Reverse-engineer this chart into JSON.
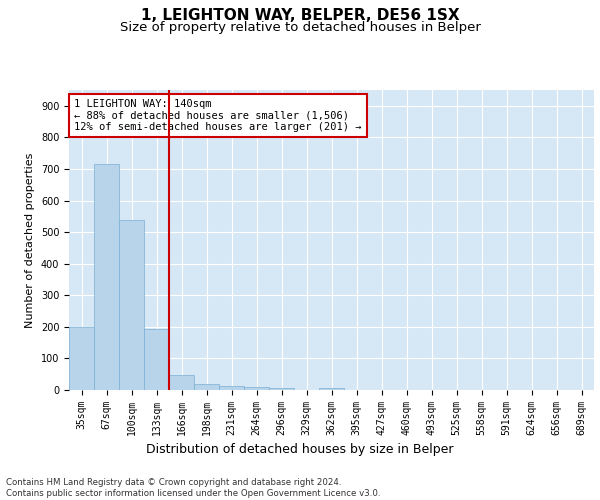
{
  "title_line1": "1, LEIGHTON WAY, BELPER, DE56 1SX",
  "title_line2": "Size of property relative to detached houses in Belper",
  "xlabel": "Distribution of detached houses by size in Belper",
  "ylabel": "Number of detached properties",
  "bins": [
    "35sqm",
    "67sqm",
    "100sqm",
    "133sqm",
    "166sqm",
    "198sqm",
    "231sqm",
    "264sqm",
    "296sqm",
    "329sqm",
    "362sqm",
    "395sqm",
    "427sqm",
    "460sqm",
    "493sqm",
    "525sqm",
    "558sqm",
    "591sqm",
    "624sqm",
    "656sqm",
    "689sqm"
  ],
  "values": [
    200,
    715,
    537,
    192,
    46,
    18,
    14,
    10,
    7,
    0,
    5,
    0,
    0,
    0,
    0,
    0,
    0,
    0,
    0,
    0,
    0
  ],
  "bar_color": "#b8d4ea",
  "bar_edge_color": "#7aafd4",
  "vline_color": "#cc0000",
  "annotation_text": "1 LEIGHTON WAY: 140sqm\n← 88% of detached houses are smaller (1,506)\n12% of semi-detached houses are larger (201) →",
  "annotation_box_color": "#ffffff",
  "annotation_box_edge": "#cc0000",
  "ylim": [
    0,
    950
  ],
  "yticks": [
    0,
    100,
    200,
    300,
    400,
    500,
    600,
    700,
    800,
    900
  ],
  "background_color": "#d6e8f5",
  "footer_text": "Contains HM Land Registry data © Crown copyright and database right 2024.\nContains public sector information licensed under the Open Government Licence v3.0.",
  "title_fontsize": 11,
  "subtitle_fontsize": 9.5,
  "tick_fontsize": 7,
  "ylabel_fontsize": 8,
  "xlabel_fontsize": 9
}
